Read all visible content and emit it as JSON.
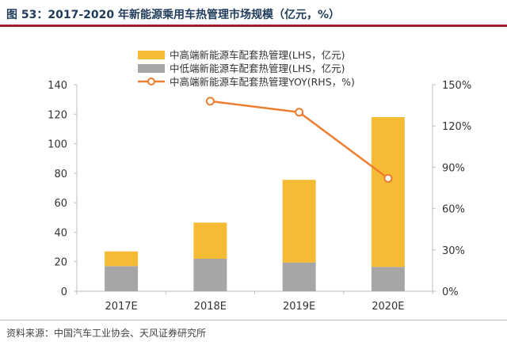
{
  "figure_title": "图 53：2017-2020 年新能源乘用车热管理市场规模（亿元，%）",
  "source": "资料来源：中国汽车工业协会、天风证券研究所",
  "colors": {
    "high": "#f6bb35",
    "low": "#a6a6a6",
    "line": "#ed7d31",
    "axis": "#bfbfbf"
  },
  "chart_data": {
    "type": "bar",
    "stacked": true,
    "categories": [
      "2017E",
      "2018E",
      "2019E",
      "2020E"
    ],
    "series": [
      {
        "name": "中低端新能源车配套热管理(LHS，亿元)",
        "values": [
          17,
          22,
          19.5,
          16.5
        ],
        "axis": "left",
        "kind": "bar",
        "color": "#a6a6a6"
      },
      {
        "name": "中高端新能源车配套热管理(LHS，亿元)",
        "values": [
          10,
          24.5,
          56,
          101.5
        ],
        "axis": "left",
        "kind": "bar",
        "color": "#f6bb35"
      },
      {
        "name": "中高端新能源车配套热管理YOY(RHS，%)",
        "values": [
          null,
          138,
          130,
          82
        ],
        "axis": "right",
        "kind": "line",
        "color": "#ed7d31"
      }
    ],
    "legend": [
      "中高端新能源车配套热管理(LHS，亿元)",
      "中低端新能源车配套热管理(LHS，亿元)",
      "中高端新能源车配套热管理YOY(RHS，%)"
    ],
    "ylim_left": [
      0,
      140
    ],
    "yticks_left": [
      "0",
      "20",
      "40",
      "60",
      "80",
      "100",
      "120",
      "140"
    ],
    "ylim_right": [
      0,
      150
    ],
    "yticks_right": [
      "0%",
      "30%",
      "60%",
      "90%",
      "120%",
      "150%"
    ],
    "legend_position": "top",
    "grid": false
  }
}
